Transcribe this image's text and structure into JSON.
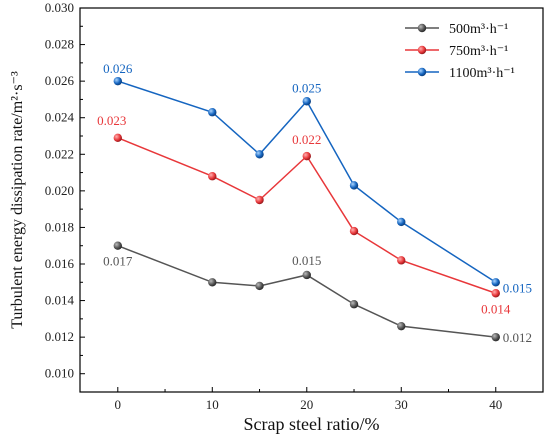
{
  "chart_data": {
    "type": "line",
    "xlabel": "Scrap steel ratio/%",
    "ylabel": "Turbulent energy dissipation rate/m²·s⁻³",
    "x": [
      0,
      10,
      15,
      20,
      25,
      30,
      40
    ],
    "xlim": [
      -4,
      45
    ],
    "ylim": [
      0.009,
      0.03
    ],
    "xticks": [
      0,
      10,
      20,
      30,
      40
    ],
    "yticks": [
      0.01,
      0.012,
      0.014,
      0.016,
      0.018,
      0.02,
      0.022,
      0.024,
      0.026,
      0.028,
      0.03
    ],
    "ytick_labels": [
      "0.010",
      "0.012",
      "0.014",
      "0.016",
      "0.018",
      "0.020",
      "0.022",
      "0.024",
      "0.026",
      "0.028",
      "0.030"
    ],
    "grid": false,
    "legend_position": "top-right",
    "series": [
      {
        "name": "500m³·h⁻¹",
        "color": "#555555",
        "values": [
          0.017,
          0.015,
          0.0148,
          0.0154,
          0.0138,
          0.0126,
          0.012
        ],
        "labels": [
          {
            "index": 0,
            "text": "0.017"
          },
          {
            "index": 3,
            "text": "0.015"
          },
          {
            "index": 6,
            "text": "0.012"
          }
        ]
      },
      {
        "name": "750m³·h⁻¹",
        "color": "#e8373a",
        "values": [
          0.0229,
          0.0208,
          0.0195,
          0.0219,
          0.0178,
          0.0162,
          0.0144
        ],
        "labels": [
          {
            "index": 0,
            "text": "0.023"
          },
          {
            "index": 3,
            "text": "0.022"
          },
          {
            "index": 6,
            "text": "0.014"
          }
        ]
      },
      {
        "name": "1100m³·h⁻¹",
        "color": "#1565c0",
        "values": [
          0.026,
          0.0243,
          0.022,
          0.0249,
          0.0203,
          0.0183,
          0.015
        ],
        "labels": [
          {
            "index": 0,
            "text": "0.026"
          },
          {
            "index": 3,
            "text": "0.025"
          },
          {
            "index": 6,
            "text": "0.015"
          }
        ]
      }
    ]
  }
}
